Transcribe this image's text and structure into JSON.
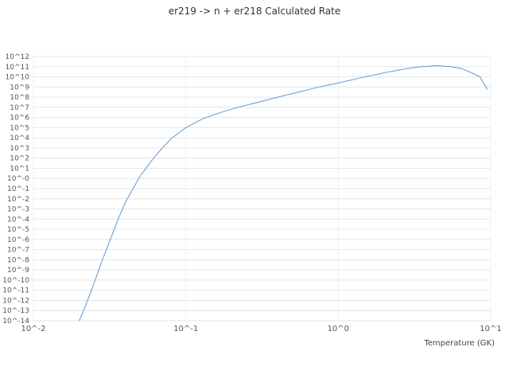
{
  "colors": {
    "background": "#ffffff",
    "grid_major": "#e6e6e6",
    "grid_vertical": "#efefef",
    "title_text": "#333333",
    "tick_text": "#555555",
    "axis_label_text": "#444444"
  },
  "chart_data": {
    "type": "line",
    "title": "er219 -> n + er218 Calculated Rate",
    "xlabel": "Temperature (GK)",
    "ylabel": "",
    "x_scale": "log",
    "y_scale": "log",
    "xlim": [
      0.01,
      10
    ],
    "ylim": [
      1e-14,
      1000000000000.0
    ],
    "grid": "major",
    "legend": "none",
    "x_ticks": [
      {
        "label": "10^-2",
        "value": 0.01
      },
      {
        "label": "10^-1",
        "value": 0.1
      },
      {
        "label": "10^0",
        "value": 1
      },
      {
        "label": "10^1",
        "value": 10
      }
    ],
    "y_ticks": [
      {
        "label": "10^12",
        "value": 1000000000000.0
      },
      {
        "label": "10^11",
        "value": 100000000000.0
      },
      {
        "label": "10^10",
        "value": 10000000000.0
      },
      {
        "label": "10^9",
        "value": 1000000000.0
      },
      {
        "label": "10^8",
        "value": 100000000.0
      },
      {
        "label": "10^7",
        "value": 10000000.0
      },
      {
        "label": "10^6",
        "value": 1000000.0
      },
      {
        "label": "10^5",
        "value": 100000.0
      },
      {
        "label": "10^4",
        "value": 10000.0
      },
      {
        "label": "10^3",
        "value": 1000.0
      },
      {
        "label": "10^2",
        "value": 100.0
      },
      {
        "label": "10^1",
        "value": 10.0
      },
      {
        "label": "10^-0",
        "value": 1
      },
      {
        "label": "10^-1",
        "value": 0.1
      },
      {
        "label": "10^-2",
        "value": 0.01
      },
      {
        "label": "10^-3",
        "value": 0.001
      },
      {
        "label": "10^-4",
        "value": 0.0001
      },
      {
        "label": "10^-5",
        "value": 1e-05
      },
      {
        "label": "10^-6",
        "value": 1e-06
      },
      {
        "label": "10^-7",
        "value": 1e-07
      },
      {
        "label": "10^-8",
        "value": 1e-08
      },
      {
        "label": "10^-9",
        "value": 1e-09
      },
      {
        "label": "10^-10",
        "value": 1e-10
      },
      {
        "label": "10^-11",
        "value": 1e-11
      },
      {
        "label": "10^-12",
        "value": 1e-12
      },
      {
        "label": "10^-13",
        "value": 1e-13
      },
      {
        "label": "10^-14",
        "value": 1e-14
      }
    ],
    "series": [
      {
        "name": "calculated-rate",
        "color": "#5b9bd5",
        "x": [
          0.02,
          0.022,
          0.025,
          0.028,
          0.032,
          0.036,
          0.04,
          0.045,
          0.05,
          0.06,
          0.07,
          0.08,
          0.1,
          0.13,
          0.17,
          0.22,
          0.3,
          0.4,
          0.55,
          0.75,
          1.0,
          1.4,
          2.0,
          2.8,
          3.5,
          4.5,
          5.5,
          6.5,
          7.5,
          8.5,
          9.5
        ],
        "y": [
          1e-14,
          3e-13,
          5e-11,
          6e-09,
          1e-06,
          0.0001,
          0.004,
          0.1,
          1.6,
          63,
          1000.0,
          8000.0,
          100000.0,
          800000.0,
          3200000.0,
          10000000.0,
          32000000.0,
          100000000.0,
          320000000.0,
          1000000000.0,
          2500000000.0,
          8000000000.0,
          25000000000.0,
          63000000000.0,
          100000000000.0,
          126000000000.0,
          100000000000.0,
          63000000000.0,
          25000000000.0,
          10000000000.0,
          600000000.0
        ]
      }
    ]
  }
}
